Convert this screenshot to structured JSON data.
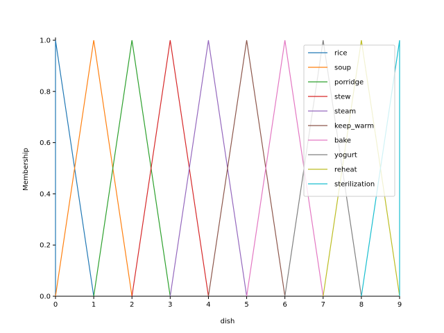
{
  "chart_data": {
    "type": "line",
    "title": "",
    "xlabel": "dish",
    "ylabel": "Membership",
    "xlim": [
      0,
      9
    ],
    "ylim": [
      0,
      1
    ],
    "grid": false,
    "legend_position": "upper-right",
    "x_ticks": [
      "0",
      "1",
      "2",
      "3",
      "4",
      "5",
      "6",
      "7",
      "8",
      "9"
    ],
    "y_ticks": [
      "0.0",
      "0.2",
      "0.4",
      "0.6",
      "0.8",
      "1.0"
    ],
    "series": [
      {
        "name": "rice",
        "color": "#1f77b4",
        "x": [
          0,
          0,
          1
        ],
        "y": [
          0,
          1,
          0
        ]
      },
      {
        "name": "soup",
        "color": "#ff7f0e",
        "x": [
          0,
          1,
          2
        ],
        "y": [
          0,
          1,
          0
        ]
      },
      {
        "name": "porridge",
        "color": "#2ca02c",
        "x": [
          1,
          2,
          3
        ],
        "y": [
          0,
          1,
          0
        ]
      },
      {
        "name": "stew",
        "color": "#d62728",
        "x": [
          2,
          3,
          4
        ],
        "y": [
          0,
          1,
          0
        ]
      },
      {
        "name": "steam",
        "color": "#9467bd",
        "x": [
          3,
          4,
          5
        ],
        "y": [
          0,
          1,
          0
        ]
      },
      {
        "name": "keep_warm",
        "color": "#8c564b",
        "x": [
          4,
          5,
          6
        ],
        "y": [
          0,
          1,
          0
        ]
      },
      {
        "name": "bake",
        "color": "#e377c2",
        "x": [
          5,
          6,
          7
        ],
        "y": [
          0,
          1,
          0
        ]
      },
      {
        "name": "yogurt",
        "color": "#7f7f7f",
        "x": [
          6,
          7,
          8
        ],
        "y": [
          0,
          1,
          0
        ]
      },
      {
        "name": "reheat",
        "color": "#bcbd22",
        "x": [
          7,
          8,
          9
        ],
        "y": [
          0,
          1,
          0
        ]
      },
      {
        "name": "sterilization",
        "color": "#17becf",
        "x": [
          8,
          9,
          9
        ],
        "y": [
          0,
          1,
          0
        ]
      }
    ]
  }
}
